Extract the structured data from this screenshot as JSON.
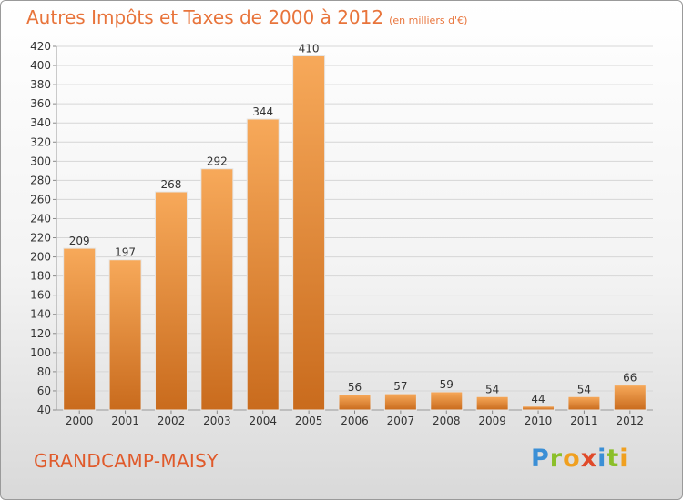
{
  "header": {
    "title": "Autres Impôts et Taxes de 2000 à 2012",
    "unit": "(en milliers d'€)"
  },
  "footer": {
    "location": "GRANDCAMP-MAISY",
    "logo": "Proxiti"
  },
  "colors": {
    "bar_light": "#f6a857",
    "bar_dark": "#c86a1c",
    "title": "#e8743b",
    "grid": "#d6d6d6"
  },
  "chart_data": {
    "type": "bar",
    "title": "Autres Impôts et Taxes de 2000 à 2012",
    "subtitle": "(en milliers d'€)",
    "categories": [
      "2000",
      "2001",
      "2002",
      "2003",
      "2004",
      "2005",
      "2006",
      "2007",
      "2008",
      "2009",
      "2010",
      "2011",
      "2012"
    ],
    "values": [
      209,
      197,
      268,
      292,
      344,
      410,
      56,
      57,
      59,
      54,
      44,
      54,
      66
    ],
    "ylim": [
      40,
      420
    ],
    "yticks": [
      40,
      60,
      80,
      100,
      120,
      140,
      160,
      180,
      200,
      220,
      240,
      260,
      280,
      300,
      320,
      340,
      360,
      380,
      400,
      420
    ],
    "grid": true,
    "data_labels": true
  }
}
